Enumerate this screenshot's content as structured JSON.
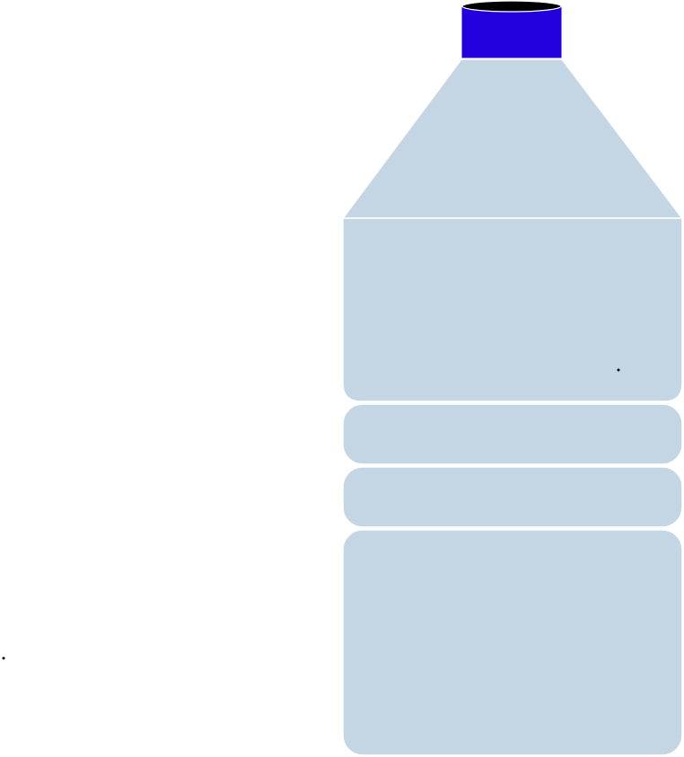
{
  "colors": {
    "background": "#ffffff",
    "cap": "#2200dd",
    "cap_top": "#000000",
    "bottle_body": "#c4d6e3",
    "bottle_outline": "#ffffff",
    "marks": "#000000"
  },
  "icons": {
    "cap": "bottle-cap-icon",
    "shoulder": "bottle-shoulder",
    "body_panels": "bottle-body-panels"
  }
}
